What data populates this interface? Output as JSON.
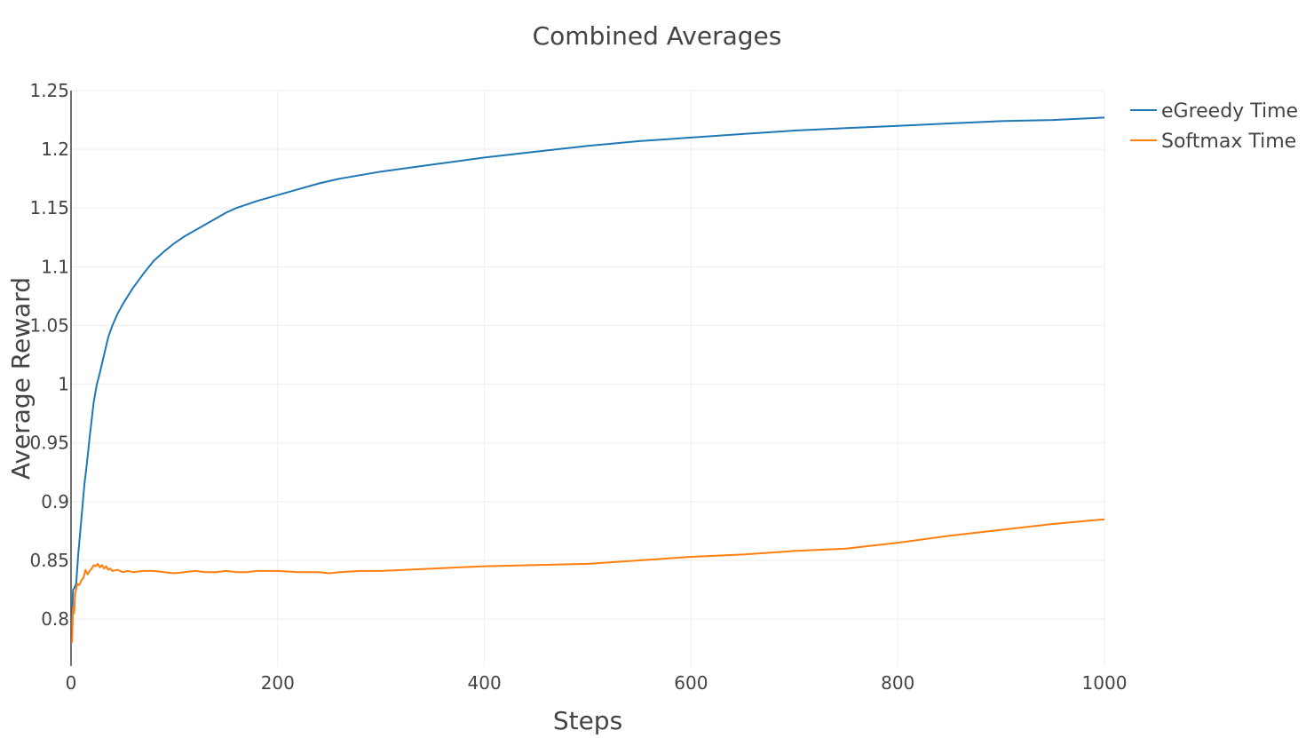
{
  "chart_data": {
    "type": "line",
    "title": "Combined Averages",
    "xlabel": "Steps",
    "ylabel": "Average Reward",
    "xlim": [
      0,
      1000
    ],
    "ylim": [
      0.76,
      1.25
    ],
    "grid": true,
    "legend_position": "top-right",
    "x_ticks": [
      0,
      200,
      400,
      600,
      800,
      1000
    ],
    "x_tick_labels": [
      "0",
      "200",
      "400",
      "600",
      "800",
      "1000"
    ],
    "y_ticks": [
      0.8,
      0.85,
      0.9,
      0.95,
      1.0,
      1.05,
      1.1,
      1.15,
      1.2,
      1.25
    ],
    "y_tick_labels": [
      "0.8",
      "0.85",
      "0.9",
      "0.95",
      "1",
      "1.05",
      "1.1",
      "1.15",
      "1.2",
      "1.25"
    ],
    "series": [
      {
        "name": "eGreedy Time",
        "color": "#1f77b4",
        "x": [
          1,
          2,
          3,
          5,
          7,
          10,
          13,
          15,
          18,
          20,
          22,
          25,
          28,
          32,
          36,
          40,
          45,
          50,
          55,
          60,
          65,
          70,
          80,
          90,
          100,
          110,
          120,
          130,
          140,
          150,
          160,
          170,
          180,
          200,
          220,
          240,
          260,
          280,
          300,
          350,
          400,
          450,
          500,
          550,
          600,
          650,
          700,
          750,
          800,
          850,
          900,
          950,
          1000
        ],
        "y": [
          0.8,
          0.825,
          0.826,
          0.83,
          0.855,
          0.885,
          0.915,
          0.93,
          0.955,
          0.97,
          0.985,
          1.0,
          1.01,
          1.025,
          1.04,
          1.05,
          1.06,
          1.068,
          1.075,
          1.082,
          1.088,
          1.094,
          1.105,
          1.113,
          1.12,
          1.126,
          1.131,
          1.136,
          1.141,
          1.146,
          1.15,
          1.153,
          1.156,
          1.161,
          1.166,
          1.171,
          1.175,
          1.178,
          1.181,
          1.187,
          1.193,
          1.198,
          1.203,
          1.207,
          1.21,
          1.213,
          1.216,
          1.218,
          1.22,
          1.222,
          1.224,
          1.225,
          1.227
        ]
      },
      {
        "name": "Softmax Time",
        "color": "#ff7f0e",
        "x": [
          1,
          2,
          3,
          4,
          5,
          6,
          8,
          10,
          12,
          14,
          16,
          18,
          20,
          22,
          24,
          26,
          28,
          30,
          32,
          34,
          36,
          38,
          40,
          45,
          50,
          55,
          60,
          70,
          80,
          90,
          100,
          110,
          120,
          130,
          140,
          150,
          160,
          170,
          180,
          200,
          220,
          240,
          250,
          260,
          280,
          300,
          350,
          400,
          450,
          500,
          550,
          600,
          650,
          700,
          750,
          800,
          850,
          900,
          950,
          1000
        ],
        "y": [
          0.78,
          0.81,
          0.805,
          0.822,
          0.825,
          0.83,
          0.829,
          0.833,
          0.835,
          0.842,
          0.838,
          0.841,
          0.843,
          0.846,
          0.845,
          0.847,
          0.844,
          0.846,
          0.843,
          0.845,
          0.842,
          0.843,
          0.841,
          0.842,
          0.84,
          0.841,
          0.84,
          0.841,
          0.841,
          0.84,
          0.839,
          0.84,
          0.841,
          0.84,
          0.84,
          0.841,
          0.84,
          0.84,
          0.841,
          0.841,
          0.84,
          0.84,
          0.839,
          0.84,
          0.841,
          0.841,
          0.843,
          0.845,
          0.846,
          0.847,
          0.85,
          0.853,
          0.855,
          0.858,
          0.86,
          0.865,
          0.871,
          0.876,
          0.881,
          0.885
        ]
      }
    ]
  }
}
